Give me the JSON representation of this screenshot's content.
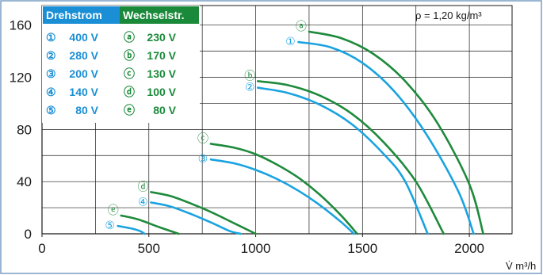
{
  "chart_data": {
    "type": "line",
    "x_unit_label": "V̇ m³/h",
    "density_label": "ρ = 1,20 kg/m³",
    "xlim": [
      0,
      2200
    ],
    "ylim": [
      0,
      175
    ],
    "x_ticks": [
      0,
      500,
      1000,
      1500,
      2000
    ],
    "y_ticks": [
      0,
      40,
      80,
      120,
      160
    ],
    "grid": true,
    "legend": {
      "placement": "top-left",
      "header_drehstrom": "Drehstrom",
      "header_wechselstrom": "Wechselstr.",
      "rows": [
        {
          "d_marker": "①",
          "d_label": "400 V",
          "w_marker": "ⓐ",
          "w_label": "230 V"
        },
        {
          "d_marker": "②",
          "d_label": "280 V",
          "w_marker": "ⓑ",
          "w_label": "170 V"
        },
        {
          "d_marker": "③",
          "d_label": "200 V",
          "w_marker": "ⓒ",
          "w_label": "130 V"
        },
        {
          "d_marker": "④",
          "d_label": "140 V",
          "w_marker": "ⓓ",
          "w_label": "100 V"
        },
        {
          "d_marker": "⑤",
          "d_label": "80 V",
          "w_marker": "ⓔ",
          "w_label": "80 V"
        }
      ]
    },
    "colors": {
      "drehstrom": "#1aa3e0",
      "wechselstrom": "#1e8a3c",
      "legend_blue": "#1a8fd6",
      "legend_green": "#1a8a3a",
      "frame": "#7a9ec4"
    },
    "series": [
      {
        "name": "ⓐ",
        "group": "wechselstrom",
        "x": [
          1250,
          1400,
          1550,
          1700,
          1850,
          2000,
          2065
        ],
        "y": [
          155,
          150,
          138,
          117,
          85,
          38,
          0
        ]
      },
      {
        "name": "①",
        "group": "drehstrom",
        "x": [
          1200,
          1350,
          1500,
          1650,
          1800,
          1950,
          2020
        ],
        "y": [
          147,
          143,
          131,
          109,
          76,
          32,
          0
        ]
      },
      {
        "name": "ⓑ",
        "group": "wechselstrom",
        "x": [
          1010,
          1150,
          1300,
          1450,
          1600,
          1750,
          1880
        ],
        "y": [
          117,
          114,
          106,
          92,
          70,
          40,
          0
        ]
      },
      {
        "name": "②",
        "group": "drehstrom",
        "x": [
          1010,
          1150,
          1300,
          1450,
          1600,
          1700,
          1805
        ],
        "y": [
          112,
          108,
          99,
          84,
          61,
          40,
          0
        ]
      },
      {
        "name": "ⓒ",
        "group": "wechselstrom",
        "x": [
          790,
          900,
          1000,
          1100,
          1200,
          1300,
          1400,
          1475
        ],
        "y": [
          69,
          66,
          61,
          53,
          43,
          30,
          14,
          0
        ]
      },
      {
        "name": "③",
        "group": "drehstrom",
        "x": [
          790,
          900,
          1000,
          1100,
          1200,
          1300,
          1400,
          1460
        ],
        "y": [
          57,
          54,
          49,
          42,
          33,
          22,
          9,
          0
        ]
      },
      {
        "name": "ⓓ",
        "group": "wechselstrom",
        "x": [
          510,
          600,
          700,
          800,
          900,
          1000
        ],
        "y": [
          32,
          29,
          23,
          16,
          8,
          0
        ]
      },
      {
        "name": "④",
        "group": "drehstrom",
        "x": [
          510,
          600,
          700,
          800,
          880,
          930
        ],
        "y": [
          24,
          21,
          15,
          8,
          2,
          0
        ]
      },
      {
        "name": "ⓔ",
        "group": "wechselstrom",
        "x": [
          370,
          450,
          550,
          640
        ],
        "y": [
          14,
          11,
          5,
          0
        ]
      },
      {
        "name": "⑤",
        "group": "drehstrom",
        "x": [
          355,
          420,
          460,
          480
        ],
        "y": [
          6,
          4,
          2,
          0
        ]
      }
    ]
  }
}
